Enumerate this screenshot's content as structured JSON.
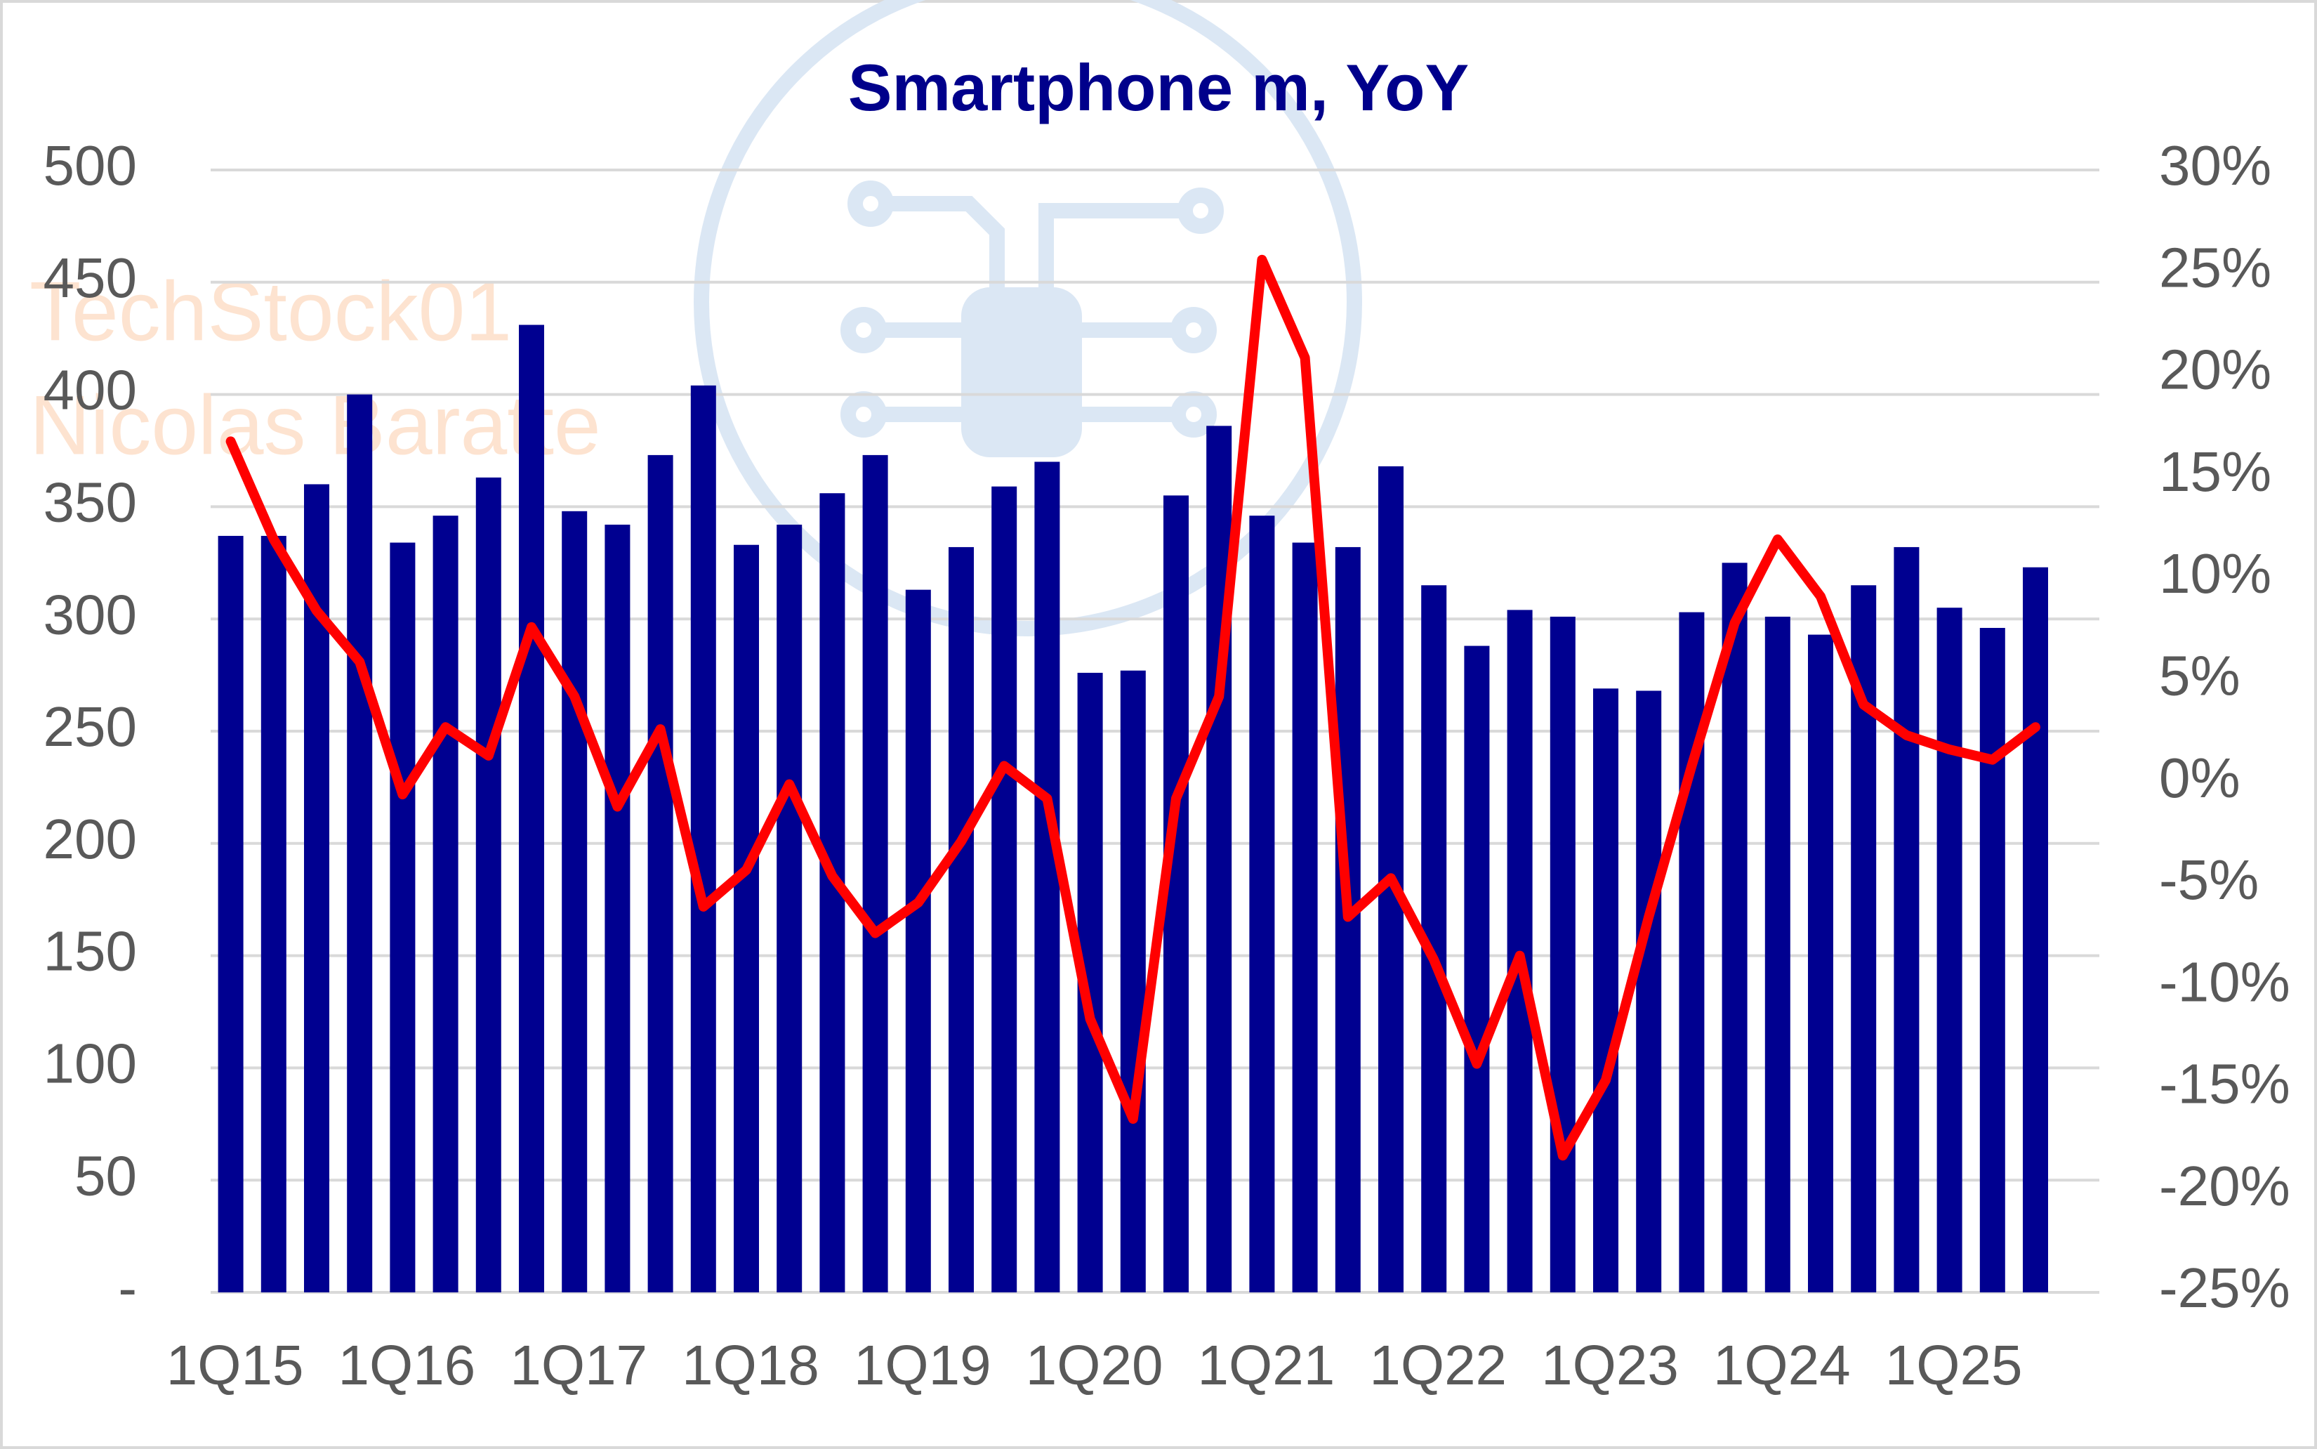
{
  "chart_data": {
    "type": "bar",
    "title": "Smartphone m, YoY",
    "watermark": [
      "TechStock01",
      "Nicolas  Baratte"
    ],
    "categories": [
      "1Q15",
      null,
      null,
      null,
      "1Q16",
      null,
      null,
      null,
      "1Q17",
      null,
      null,
      null,
      "1Q18",
      null,
      null,
      null,
      "1Q19",
      null,
      null,
      null,
      "1Q20",
      null,
      null,
      null,
      "1Q21",
      null,
      null,
      null,
      "1Q22",
      null,
      null,
      null,
      "1Q23",
      null,
      null,
      null,
      "1Q24",
      null,
      null,
      null,
      "1Q25",
      null,
      null
    ],
    "series": [
      {
        "type": "bar",
        "color": "#000090",
        "values": [
          337,
          337,
          360,
          400,
          334,
          346,
          363,
          431,
          348,
          342,
          373,
          404,
          333,
          342,
          356,
          373,
          313,
          332,
          359,
          370,
          276,
          277,
          355,
          386,
          346,
          334,
          332,
          368,
          315,
          288,
          304,
          301,
          269,
          268,
          303,
          325,
          301,
          293,
          315,
          332,
          305,
          296,
          323
        ]
      },
      {
        "type": "line",
        "axis": "y2",
        "color": "#ff0000",
        "values": [
          16.7,
          11.9,
          8.4,
          5.9,
          -0.6,
          2.7,
          1.3,
          7.6,
          4.2,
          -1.2,
          2.6,
          -6.1,
          -4.3,
          -0.1,
          -4.6,
          -7.4,
          -5.9,
          -2.9,
          0.8,
          -0.8,
          -11.6,
          -16.5,
          -0.8,
          4.2,
          25.6,
          20.8,
          -6.6,
          -4.7,
          -8.7,
          -13.8,
          -8.5,
          -18.3,
          -14.6,
          -6.6,
          0.8,
          7.8,
          11.9,
          9.1,
          3.8,
          2.3,
          1.6,
          1.1,
          2.7
        ]
      }
    ],
    "ylim": [
      0,
      500
    ],
    "yticks": [
      {
        "value": 0,
        "label": "-"
      },
      50,
      100,
      150,
      200,
      250,
      300,
      350,
      400,
      450,
      500
    ],
    "y2lim": [
      -25,
      30
    ],
    "y2ticks": [
      {
        "value": -25,
        "label": "-25%"
      },
      {
        "value": -20,
        "label": "-20%"
      },
      {
        "value": -15,
        "label": "-15%"
      },
      {
        "value": -10,
        "label": "-10%"
      },
      {
        "value": -5,
        "label": "-5%"
      },
      {
        "value": 0,
        "label": "0%"
      },
      {
        "value": 5,
        "label": "5%"
      },
      {
        "value": 10,
        "label": "10%"
      },
      {
        "value": 15,
        "label": "15%"
      },
      {
        "value": 20,
        "label": "20%"
      },
      {
        "value": 25,
        "label": "25%"
      },
      {
        "value": 30,
        "label": "30%"
      }
    ],
    "grid": true
  }
}
